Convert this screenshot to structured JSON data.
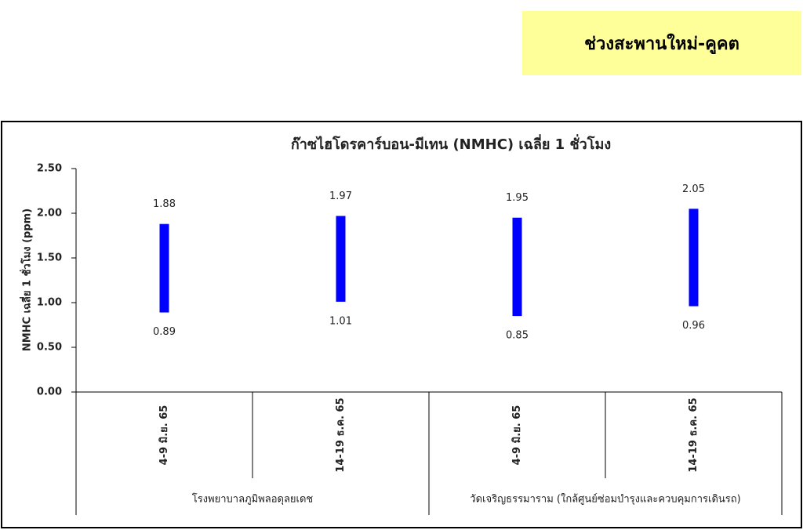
{
  "header": {
    "title": "ช่วงสะพานใหม่-คูคต"
  },
  "chart_data": {
    "type": "range_bar",
    "title": "ก๊าซไฮโดรคาร์บอน-มีเทน (NMHC) เฉลี่ย 1 ชั่วโมง",
    "y_label": "NMHC เฉลี่ย 1 ชั่วโมง (ppm)",
    "categories": [
      "4-9 มิ.ย. 65",
      "14-19 ธ.ค. 65",
      "4-9 มิ.ย. 65",
      "14-19 ธ.ค. 65"
    ],
    "groups": [
      {
        "name": "โรงพยาบาลภูมิพลอดุลยเดช",
        "size": 2
      },
      {
        "name": "วัดเจริญธรรมาราม (ใกล้ศูนย์ซ่อมบำรุงและควบคุมการเดินรถ)",
        "size": 2
      }
    ],
    "low": [
      0.89,
      1.01,
      0.85,
      0.96
    ],
    "high": [
      1.88,
      1.97,
      1.95,
      2.05
    ],
    "color": "#0000ff",
    "ylim": [
      0,
      2.5
    ],
    "yticks": [
      {
        "value": 0,
        "label": "0.00"
      },
      {
        "value": 0.5,
        "label": "0.50"
      },
      {
        "value": 1,
        "label": "1.00"
      },
      {
        "value": 1.5,
        "label": "1.50"
      },
      {
        "value": 2,
        "label": "2.00"
      },
      {
        "value": 2.5,
        "label": "2.50"
      }
    ]
  }
}
